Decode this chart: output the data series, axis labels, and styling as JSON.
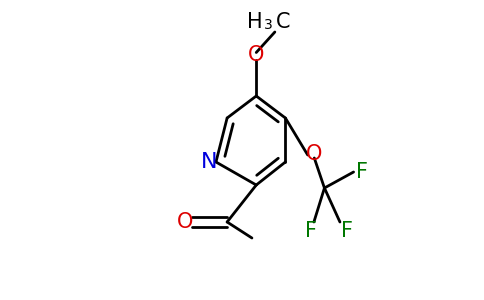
{
  "bg": "#ffffff",
  "bc": "#000000",
  "N_color": "#0000dd",
  "O_color": "#dd0000",
  "F_color": "#007700",
  "lw": 2.0,
  "fs": 14,
  "fs_sub": 10,
  "figsize": [
    4.84,
    3.0
  ],
  "dpi": 100,
  "xlim": [
    0.0,
    1.0
  ],
  "ylim": [
    0.0,
    1.0
  ]
}
